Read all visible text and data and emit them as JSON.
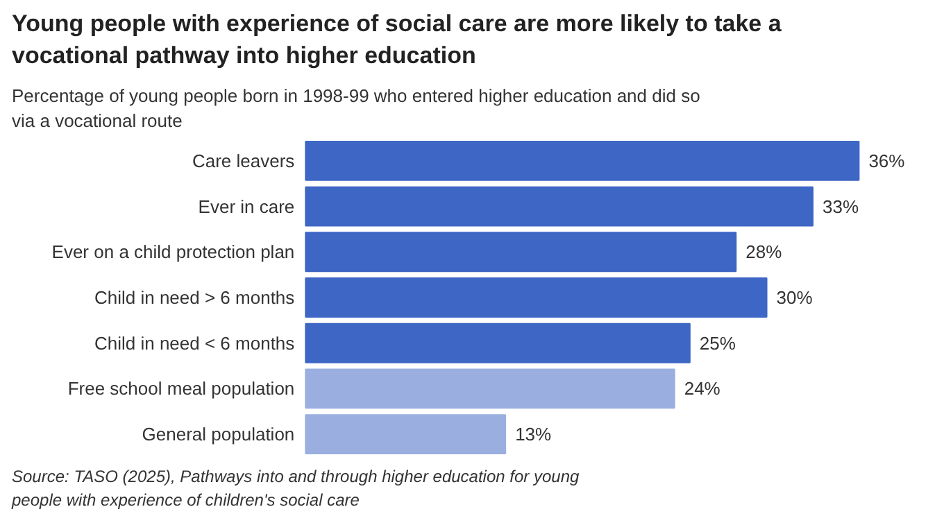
{
  "chart_data": {
    "type": "bar",
    "orientation": "horizontal",
    "title": "Young people with experience of social care are more likely to take a vocational pathway into higher education",
    "subtitle": "Percentage of young people born in 1998-99 who entered higher education and did so via a vocational route",
    "categories": [
      "Care leavers",
      "Ever in care",
      "Ever on a child protection plan",
      "Child in need > 6 months",
      "Child in need < 6 months",
      "Free school meal population",
      "General population"
    ],
    "values": [
      36,
      33,
      28,
      30,
      25,
      24,
      13
    ],
    "colors": [
      "#3e66c4",
      "#3e66c4",
      "#3e66c4",
      "#3e66c4",
      "#3e66c4",
      "#9aaedf",
      "#9aaedf"
    ],
    "value_labels": [
      "36%",
      "33%",
      "28%",
      "30%",
      "25%",
      "24%",
      "13%"
    ],
    "grid": false,
    "annotations": [
      "Source: TASO (2025), Pathways into and through higher education for young people with experience of children's social care"
    ]
  }
}
